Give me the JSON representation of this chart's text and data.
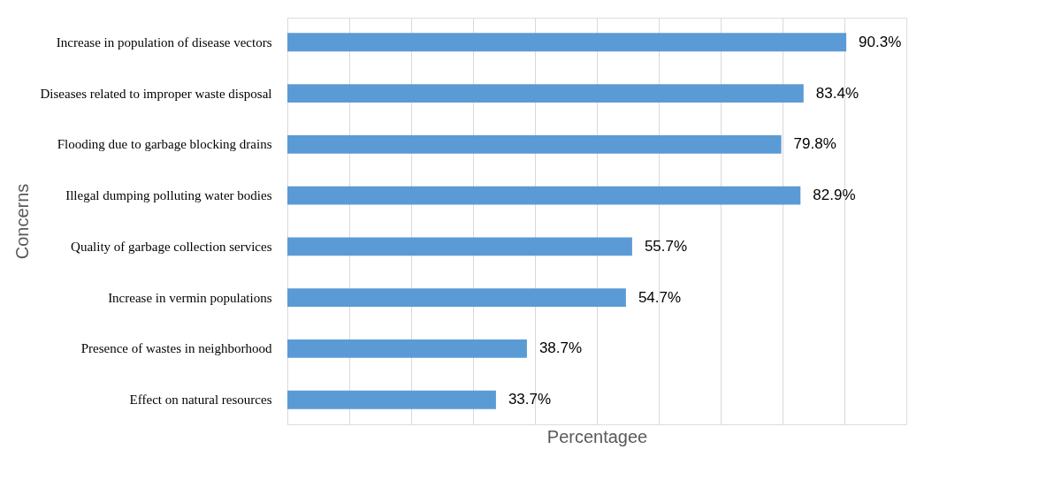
{
  "chart_data": {
    "type": "bar",
    "orientation": "horizontal",
    "xlabel": "Percentagee",
    "ylabel": "Concerns",
    "categories": [
      "Increase in population of disease vectors",
      "Diseases related to improper waste disposal",
      "Flooding due to garbage blocking drains",
      "Illegal dumping polluting water bodies",
      "Quality of garbage collection services",
      "Increase in vermin populations",
      "Presence of wastes in neighborhood",
      "Effect on natural resources"
    ],
    "values": [
      90.3,
      83.4,
      79.8,
      82.9,
      55.7,
      54.7,
      38.7,
      33.7
    ],
    "value_labels": [
      "90.3%",
      "83.4%",
      "79.8%",
      "82.9%",
      "55.7%",
      "54.7%",
      "38.7%",
      "33.7%"
    ],
    "color": "#5b9bd5",
    "xlim": [
      0,
      100
    ],
    "xticks": [
      {
        "value": 0,
        "label": null
      },
      {
        "value": 10,
        "label": null
      },
      {
        "value": 20,
        "label": null
      },
      {
        "value": 30,
        "label": null
      },
      {
        "value": 40,
        "label": null
      },
      {
        "value": 50,
        "label": null
      },
      {
        "value": 60,
        "label": null
      },
      {
        "value": 70,
        "label": null
      },
      {
        "value": 80,
        "label": null
      },
      {
        "value": 90,
        "label": null
      }
    ],
    "grid": "x",
    "tick_labels": "y"
  }
}
